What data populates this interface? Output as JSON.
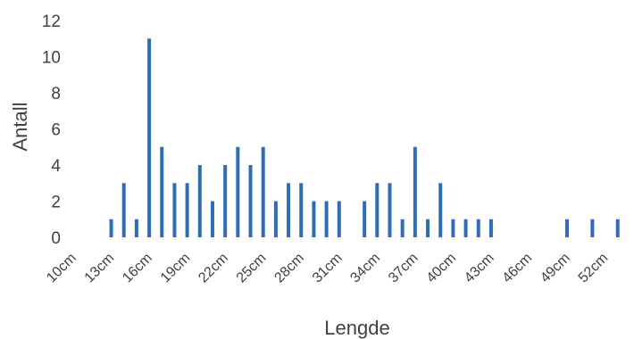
{
  "chart_data": {
    "type": "bar",
    "title": "",
    "xlabel": "Lengde",
    "ylabel": "Antall",
    "ylim": [
      0,
      12
    ],
    "yticks": [
      0,
      2,
      4,
      6,
      8,
      10,
      12
    ],
    "grid": false,
    "legend": "none",
    "bar_color": "#2e6db4",
    "categories": [
      "10cm",
      "11cm",
      "12cm",
      "13cm",
      "14cm",
      "15cm",
      "16cm",
      "17cm",
      "18cm",
      "19cm",
      "20cm",
      "21cm",
      "22cm",
      "23cm",
      "24cm",
      "25cm",
      "26cm",
      "27cm",
      "28cm",
      "29cm",
      "30cm",
      "31cm",
      "32cm",
      "33cm",
      "34cm",
      "35cm",
      "36cm",
      "37cm",
      "38cm",
      "39cm",
      "40cm",
      "41cm",
      "42cm",
      "43cm",
      "44cm",
      "45cm",
      "46cm",
      "47cm",
      "48cm",
      "49cm",
      "50cm",
      "51cm",
      "52cm",
      "53cm",
      "54cm"
    ],
    "values": [
      0,
      0,
      0,
      1,
      3,
      1,
      11,
      5,
      3,
      3,
      4,
      2,
      4,
      5,
      4,
      5,
      2,
      3,
      3,
      2,
      2,
      2,
      0,
      2,
      3,
      3,
      1,
      5,
      1,
      3,
      1,
      1,
      1,
      1,
      0,
      0,
      0,
      0,
      0,
      1,
      0,
      1,
      0,
      1,
      0
    ],
    "xtick_labels": [
      "10cm",
      "13cm",
      "16cm",
      "19cm",
      "22cm",
      "25cm",
      "28cm",
      "31cm",
      "34cm",
      "37cm",
      "40cm",
      "43cm",
      "46cm",
      "49cm",
      "52cm"
    ]
  }
}
